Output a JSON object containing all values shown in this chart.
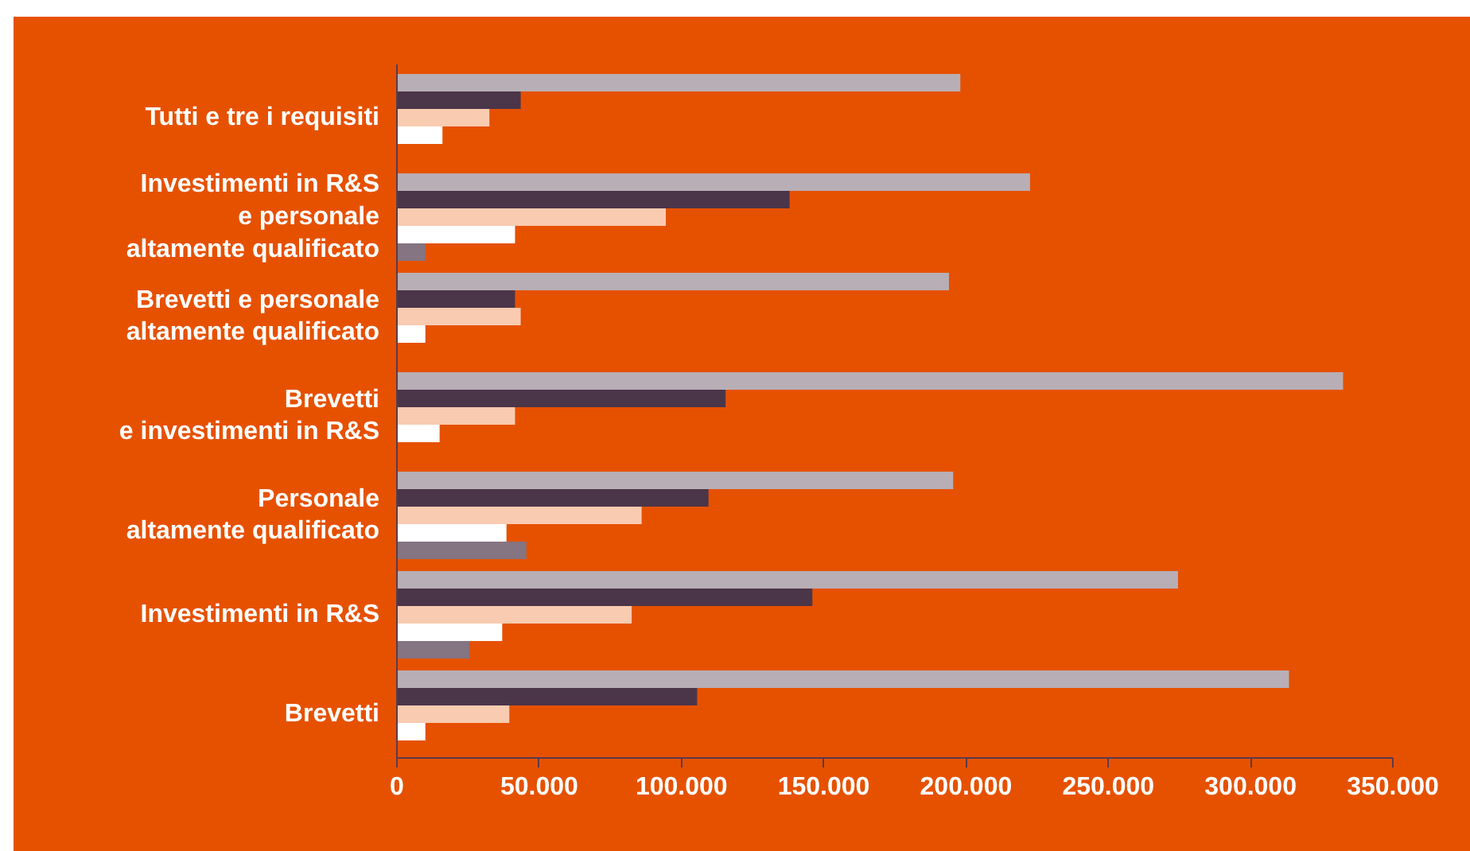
{
  "chart_data": {
    "type": "bar",
    "orientation": "horizontal",
    "categories": [
      "Tutti e tre i requisiti",
      "Investimenti in R&S\ne personale\naltamente qualificato",
      "Brevetti e personale\naltamente qualificato",
      "Brevetti\ne investimenti in R&S",
      "Personale\naltamente qualificato",
      "Investimenti in R&S",
      "Brevetti"
    ],
    "series": [
      {
        "color": "#b8aeb5",
        "values": [
          198000,
          222500,
          194000,
          332500,
          195500,
          274500,
          313500
        ]
      },
      {
        "color": "#4b3549",
        "values": [
          43500,
          138000,
          41500,
          115500,
          109500,
          146000,
          105500
        ]
      },
      {
        "color": "#f9cbb0",
        "values": [
          32500,
          94500,
          43500,
          41500,
          86000,
          82500,
          39500
        ]
      },
      {
        "color": "#ffffff",
        "values": [
          16000,
          41500,
          10000,
          15000,
          38500,
          37000,
          10000
        ]
      },
      {
        "color": "#857482",
        "values": [
          null,
          10000,
          null,
          null,
          45500,
          25500,
          null
        ]
      }
    ],
    "xlim": [
      0,
      350000
    ],
    "xticks": [
      0,
      {
        "value": 50000,
        "label": "50.000"
      },
      {
        "value": 100000,
        "label": "100.000"
      },
      {
        "value": 150000,
        "label": "150.000"
      },
      {
        "value": 200000,
        "label": "200.000"
      },
      {
        "value": 250000,
        "label": "250.000"
      },
      {
        "value": 300000,
        "label": "300.000"
      },
      {
        "value": 350000,
        "label": "350.000"
      }
    ],
    "grid": false
  }
}
